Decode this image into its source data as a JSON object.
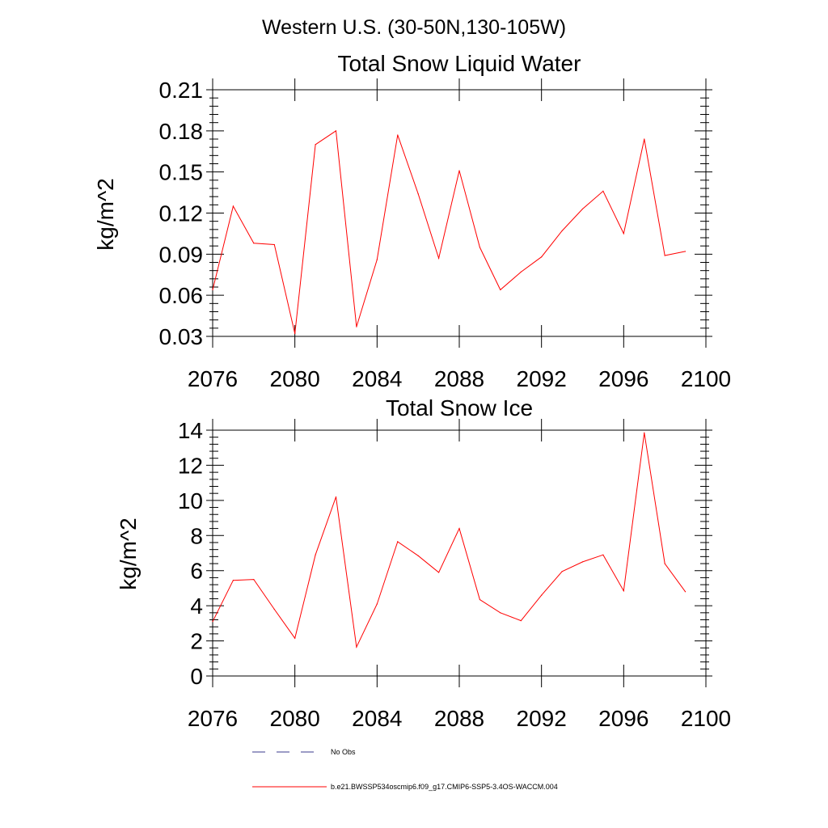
{
  "figure": {
    "suptitle": "Western U.S. (30-50N,130-105W)",
    "legend": [
      {
        "label": "No Obs",
        "style": "dashed",
        "color": "#3a3a8c"
      },
      {
        "label": "b.e21.BWSSP534oscmip6.f09_g17.CMIP6-SSP5-3.4OS-WACCM.004",
        "style": "solid",
        "color": "#ff0000"
      }
    ]
  },
  "chart_data": [
    {
      "type": "line",
      "title": "Total Snow Liquid Water",
      "xlabel": "",
      "ylabel": "kg/m^2",
      "xlim": [
        2076,
        2100
      ],
      "ylim": [
        0.03,
        0.21
      ],
      "xticks": [
        2076,
        2080,
        2084,
        2088,
        2092,
        2096,
        2100
      ],
      "yticks": [
        0.03,
        0.06,
        0.09,
        0.12,
        0.15,
        0.18,
        0.21
      ],
      "ytick_labels": [
        "0.03",
        "0.06",
        "0.09",
        "0.12",
        "0.15",
        "0.18",
        "0.21"
      ],
      "grid": false,
      "x": [
        2076,
        2077,
        2078,
        2079,
        2080,
        2081,
        2082,
        2083,
        2084,
        2085,
        2086,
        2087,
        2088,
        2089,
        2090,
        2091,
        2092,
        2093,
        2094,
        2095,
        2096,
        2097,
        2098,
        2099
      ],
      "series": [
        {
          "name": "b.e21.BWSSP534oscmip6.f09_g17.CMIP6-SSP5-3.4OS-WACCM.004",
          "color": "#ff0000",
          "values": [
            0.064,
            0.125,
            0.098,
            0.097,
            0.032,
            0.17,
            0.18,
            0.037,
            0.086,
            0.177,
            0.134,
            0.087,
            0.151,
            0.095,
            0.064,
            0.077,
            0.088,
            0.107,
            0.123,
            0.136,
            0.105,
            0.174,
            0.089,
            0.092
          ]
        }
      ]
    },
    {
      "type": "line",
      "title": "Total Snow Ice",
      "xlabel": "",
      "ylabel": "kg/m^2",
      "xlim": [
        2076,
        2100
      ],
      "ylim": [
        0,
        14
      ],
      "xticks": [
        2076,
        2080,
        2084,
        2088,
        2092,
        2096,
        2100
      ],
      "yticks": [
        0,
        2,
        4,
        6,
        8,
        10,
        12,
        14
      ],
      "ytick_labels": [
        "0",
        "2",
        "4",
        "6",
        "8",
        "10",
        "12",
        "14"
      ],
      "grid": false,
      "x": [
        2076,
        2077,
        2078,
        2079,
        2080,
        2081,
        2082,
        2083,
        2084,
        2085,
        2086,
        2087,
        2088,
        2089,
        2090,
        2091,
        2092,
        2093,
        2094,
        2095,
        2096,
        2097,
        2098,
        2099
      ],
      "series": [
        {
          "name": "b.e21.BWSSP534oscmip6.f09_g17.CMIP6-SSP5-3.4OS-WACCM.004",
          "color": "#ff0000",
          "values": [
            3.1,
            5.45,
            5.5,
            3.8,
            2.15,
            6.9,
            10.2,
            1.65,
            4.1,
            7.65,
            6.85,
            5.9,
            8.4,
            4.35,
            3.6,
            3.15,
            4.6,
            5.95,
            6.5,
            6.9,
            4.85,
            13.85,
            6.4,
            4.8
          ]
        }
      ]
    }
  ]
}
